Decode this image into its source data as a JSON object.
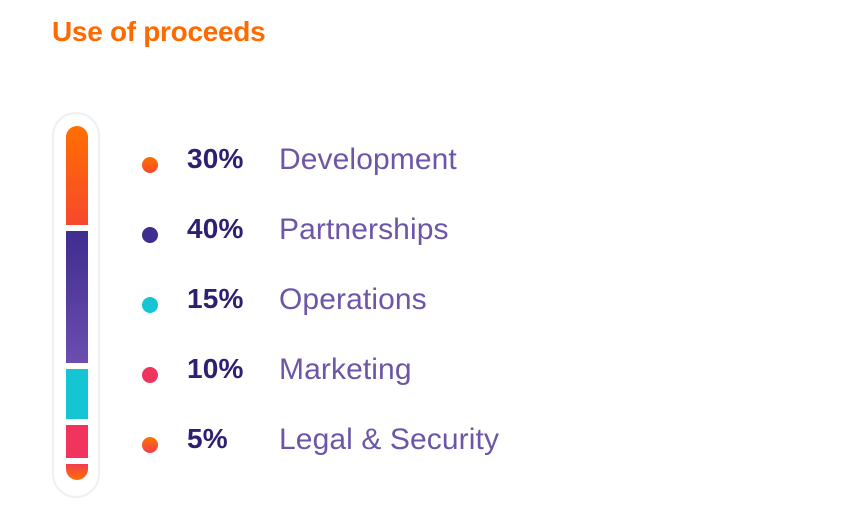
{
  "header": {
    "title": "Use of proceeds"
  },
  "colors": {
    "title": "#ff6a00",
    "percent_text": "#2d1f72",
    "label_text": "#6d56a8",
    "development": [
      "#f7482d",
      "#ff6f00"
    ],
    "partnerships": [
      "#3f2d8f",
      "#6b4eb0"
    ],
    "operations": "#16c5d4",
    "marketing": "#f0345d",
    "legal_security": [
      "#f13d4d",
      "#ff7300"
    ]
  },
  "chart_data": {
    "type": "stacked_bar",
    "categories": [
      "Development",
      "Partnerships",
      "Operations",
      "Marketing",
      "Legal & Security"
    ],
    "values": [
      30,
      40,
      15,
      10,
      5
    ],
    "percent_labels": [
      "30%",
      "40%",
      "15%",
      "10%",
      "5%"
    ],
    "ylim": [
      0,
      100
    ],
    "grid": false,
    "legend": "right"
  }
}
